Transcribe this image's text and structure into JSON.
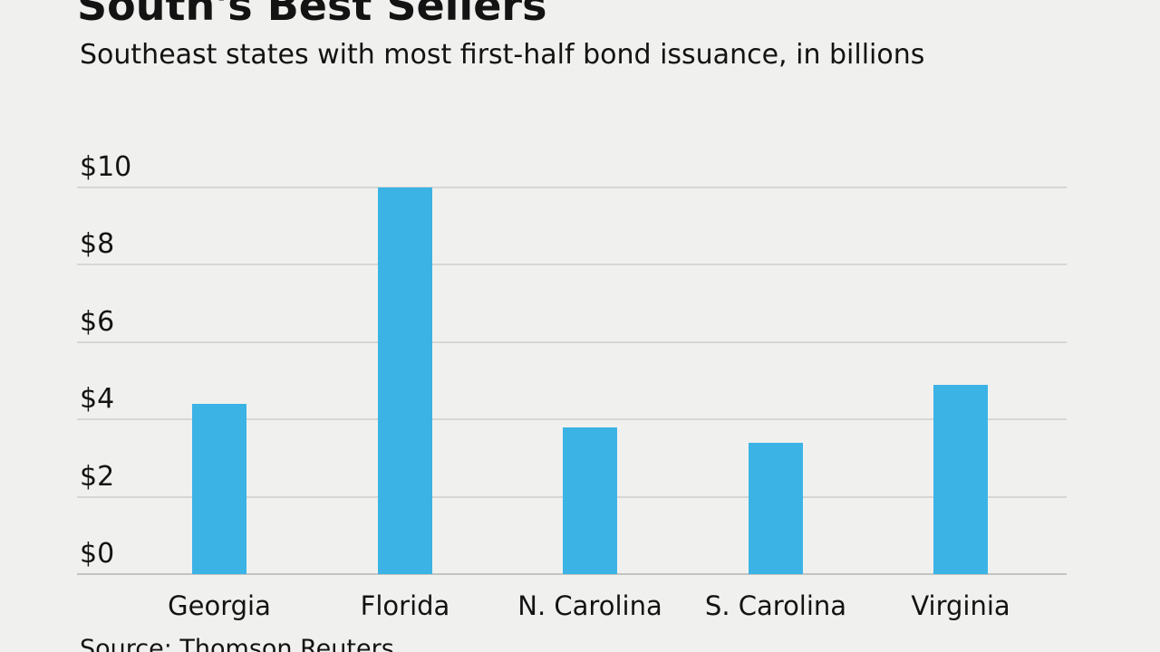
{
  "header": {
    "title": "South's Best Sellers",
    "subtitle": "Southeast states with most first-half bond issuance, in billions"
  },
  "chart_data": {
    "type": "bar",
    "title": "South's Best Sellers",
    "subtitle": "Southeast states with most first-half bond issuance, in billions",
    "categories": [
      "Georgia",
      "Florida",
      "N. Carolina",
      "S. Carolina",
      "Virginia"
    ],
    "values": [
      4.4,
      10.0,
      3.8,
      3.4,
      4.9
    ],
    "xlabel": "",
    "ylabel": "",
    "unit": "$ billions",
    "ylim": [
      0,
      10
    ],
    "y_tick_values": [
      10,
      8,
      6,
      4,
      2,
      0
    ],
    "y_tick_labels": [
      "$10",
      "$8",
      "$6",
      "$4",
      "$2",
      "$0"
    ],
    "grid": true,
    "legend": "none",
    "bar_color": "#3cb3e5",
    "grid_color": "#d5d7d3",
    "axis_line_color": "#c2c4c1",
    "background_color": "#f0f1ee",
    "text_color": "#131313"
  },
  "footer": {
    "source": "Source: Thomson Reuters"
  }
}
